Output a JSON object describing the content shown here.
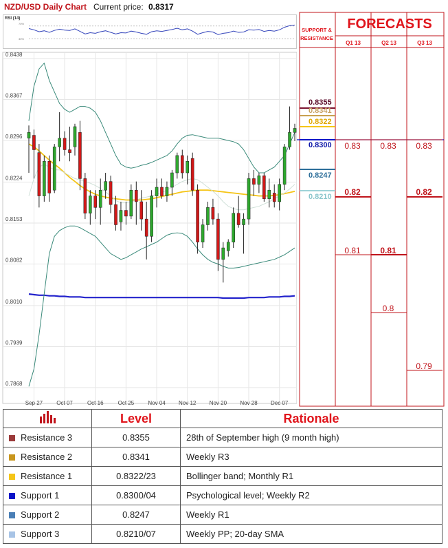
{
  "header": {
    "title": "NZD/USD Daily Chart",
    "price_label": "Current price:",
    "price_value": "0.8317"
  },
  "rsi": {
    "label": "RSI (14)",
    "level_labels": [
      "70%",
      "30%"
    ]
  },
  "forecast_header": {
    "title": "FORECASTS",
    "sr_title_line1": "SUPPORT &",
    "sr_title_line2": "RESISTANCE",
    "quarters": [
      "Q1 13",
      "Q2 13",
      "Q3 13"
    ]
  },
  "levels": [
    {
      "name": "Resistance 3",
      "value": "0.8355",
      "level_label": "0.8355",
      "color": "#7b1230",
      "swatch": "#9b3a3a",
      "rationale": "28th of September high (9 month high)"
    },
    {
      "name": "Resistance 2",
      "value": "0.8341",
      "level_label": "0.8341",
      "color": "#c8a050",
      "swatch": "#c8961e",
      "rationale": "Weekly R3"
    },
    {
      "name": "Resistance 1",
      "value": "0.8322/23",
      "level_label": "0.8322",
      "color": "#f5c518",
      "swatch": "#f5c518",
      "rationale": "Bollinger band; Monthly R1"
    },
    {
      "name": "Support 1",
      "value": "0.8300/04",
      "level_label": "0.8300",
      "color": "#0a14c8",
      "swatch": "#0a14c8",
      "rationale": "Psychological level; Weekly R2"
    },
    {
      "name": "Support 2",
      "value": "0.8247",
      "level_label": "0.8247",
      "color": "#2e6f9a",
      "swatch": "#4a7fb6",
      "rationale": "Weekly R1"
    },
    {
      "name": "Support 3",
      "value": "0.8210/07",
      "level_label": "0.8210",
      "color": "#9ed3d8",
      "swatch": "#a8c4e6",
      "rationale": "Weekly PP; 20-day SMA"
    }
  ],
  "table": {
    "header_level": "Level",
    "header_rationale": "Rationale"
  },
  "forecasts": {
    "columns": [
      {
        "quarter": "Q1 13",
        "values": [
          0.83,
          0.82,
          0.81
        ],
        "labels": [
          "0.83",
          "0.82",
          "0.81"
        ],
        "bold_index": 1
      },
      {
        "quarter": "Q2 13",
        "values": [
          0.83,
          0.81,
          0.8
        ],
        "labels": [
          "0.83",
          "0.81",
          "0.8"
        ],
        "bold_index": 1
      },
      {
        "quarter": "Q3 13",
        "values": [
          0.83,
          0.82,
          0.79
        ],
        "labels": [
          "0.83",
          "0.82",
          "0.79"
        ],
        "bold_index": 1
      }
    ]
  },
  "chart_data": {
    "type": "candlestick",
    "title": "NZD/USD Daily Chart",
    "y_ticks": [
      "0.8438",
      "0.8367",
      "0.8296",
      "0.8224",
      "0.8153",
      "0.8082",
      "0.8010",
      "0.7939",
      "0.7868"
    ],
    "ylim": [
      0.7868,
      0.8438
    ],
    "x_ticks": [
      "Sep 27",
      "Oct 07",
      "Oct 16",
      "Oct 25",
      "Nov 04",
      "Nov 12",
      "Nov 20",
      "Nov 28",
      "Dec 07"
    ],
    "grid": true,
    "candles": [
      {
        "o": 0.83,
        "h": 0.8322,
        "l": 0.824,
        "c": 0.831
      },
      {
        "o": 0.8305,
        "h": 0.8315,
        "l": 0.823,
        "c": 0.828
      },
      {
        "o": 0.8275,
        "h": 0.829,
        "l": 0.818,
        "c": 0.82
      },
      {
        "o": 0.82,
        "h": 0.827,
        "l": 0.819,
        "c": 0.826
      },
      {
        "o": 0.826,
        "h": 0.827,
        "l": 0.819,
        "c": 0.8205
      },
      {
        "o": 0.821,
        "h": 0.829,
        "l": 0.8205,
        "c": 0.8285
      },
      {
        "o": 0.8285,
        "h": 0.8345,
        "l": 0.826,
        "c": 0.83
      },
      {
        "o": 0.83,
        "h": 0.8312,
        "l": 0.827,
        "c": 0.828
      },
      {
        "o": 0.828,
        "h": 0.832,
        "l": 0.826,
        "c": 0.8275
      },
      {
        "o": 0.8285,
        "h": 0.8325,
        "l": 0.827,
        "c": 0.832
      },
      {
        "o": 0.831,
        "h": 0.833,
        "l": 0.821,
        "c": 0.823
      },
      {
        "o": 0.823,
        "h": 0.824,
        "l": 0.816,
        "c": 0.817
      },
      {
        "o": 0.817,
        "h": 0.821,
        "l": 0.815,
        "c": 0.82
      },
      {
        "o": 0.82,
        "h": 0.821,
        "l": 0.816,
        "c": 0.818
      },
      {
        "o": 0.818,
        "h": 0.823,
        "l": 0.815,
        "c": 0.821
      },
      {
        "o": 0.821,
        "h": 0.824,
        "l": 0.8195,
        "c": 0.8225
      },
      {
        "o": 0.8225,
        "h": 0.8235,
        "l": 0.817,
        "c": 0.8185
      },
      {
        "o": 0.8185,
        "h": 0.82,
        "l": 0.814,
        "c": 0.815
      },
      {
        "o": 0.8155,
        "h": 0.819,
        "l": 0.814,
        "c": 0.8175
      },
      {
        "o": 0.8175,
        "h": 0.819,
        "l": 0.815,
        "c": 0.8165
      },
      {
        "o": 0.8165,
        "h": 0.822,
        "l": 0.816,
        "c": 0.821
      },
      {
        "o": 0.821,
        "h": 0.8225,
        "l": 0.815,
        "c": 0.819
      },
      {
        "o": 0.819,
        "h": 0.821,
        "l": 0.814,
        "c": 0.816
      },
      {
        "o": 0.816,
        "h": 0.819,
        "l": 0.809,
        "c": 0.813
      },
      {
        "o": 0.813,
        "h": 0.821,
        "l": 0.812,
        "c": 0.82
      },
      {
        "o": 0.82,
        "h": 0.823,
        "l": 0.818,
        "c": 0.8215
      },
      {
        "o": 0.8215,
        "h": 0.823,
        "l": 0.8195,
        "c": 0.82
      },
      {
        "o": 0.82,
        "h": 0.8225,
        "l": 0.819,
        "c": 0.8215
      },
      {
        "o": 0.8215,
        "h": 0.8245,
        "l": 0.82,
        "c": 0.824
      },
      {
        "o": 0.824,
        "h": 0.8275,
        "l": 0.823,
        "c": 0.827
      },
      {
        "o": 0.827,
        "h": 0.828,
        "l": 0.823,
        "c": 0.824
      },
      {
        "o": 0.824,
        "h": 0.827,
        "l": 0.822,
        "c": 0.826
      },
      {
        "o": 0.8265,
        "h": 0.8275,
        "l": 0.82,
        "c": 0.821
      },
      {
        "o": 0.821,
        "h": 0.822,
        "l": 0.81,
        "c": 0.812
      },
      {
        "o": 0.812,
        "h": 0.816,
        "l": 0.811,
        "c": 0.815
      },
      {
        "o": 0.815,
        "h": 0.819,
        "l": 0.814,
        "c": 0.818
      },
      {
        "o": 0.818,
        "h": 0.8195,
        "l": 0.815,
        "c": 0.816
      },
      {
        "o": 0.816,
        "h": 0.817,
        "l": 0.807,
        "c": 0.809
      },
      {
        "o": 0.809,
        "h": 0.812,
        "l": 0.805,
        "c": 0.811
      },
      {
        "o": 0.8105,
        "h": 0.8125,
        "l": 0.8095,
        "c": 0.812
      },
      {
        "o": 0.812,
        "h": 0.818,
        "l": 0.811,
        "c": 0.817
      },
      {
        "o": 0.817,
        "h": 0.82,
        "l": 0.8145,
        "c": 0.815
      },
      {
        "o": 0.815,
        "h": 0.817,
        "l": 0.81,
        "c": 0.816
      },
      {
        "o": 0.816,
        "h": 0.824,
        "l": 0.815,
        "c": 0.823
      },
      {
        "o": 0.823,
        "h": 0.8245,
        "l": 0.82,
        "c": 0.822
      },
      {
        "o": 0.822,
        "h": 0.824,
        "l": 0.8205,
        "c": 0.8235
      },
      {
        "o": 0.8235,
        "h": 0.824,
        "l": 0.819,
        "c": 0.8195
      },
      {
        "o": 0.8195,
        "h": 0.823,
        "l": 0.818,
        "c": 0.821
      },
      {
        "o": 0.8205,
        "h": 0.822,
        "l": 0.818,
        "c": 0.819
      },
      {
        "o": 0.819,
        "h": 0.823,
        "l": 0.8175,
        "c": 0.822
      },
      {
        "o": 0.822,
        "h": 0.829,
        "l": 0.821,
        "c": 0.8285
      },
      {
        "o": 0.8285,
        "h": 0.8355,
        "l": 0.828,
        "c": 0.831
      },
      {
        "o": 0.831,
        "h": 0.8325,
        "l": 0.8295,
        "c": 0.8317
      }
    ],
    "series": [
      {
        "values": [
          0.829,
          0.8285,
          0.8278,
          0.827,
          0.8262,
          0.8255,
          0.8248,
          0.824,
          0.8232,
          0.8225,
          0.8218,
          0.8212,
          0.8207,
          0.8203,
          0.82,
          0.8198,
          0.8196,
          0.8195,
          0.8194,
          0.8193,
          0.8193,
          0.8193,
          0.8193,
          0.8194,
          0.8195,
          0.8197,
          0.8199,
          0.8201,
          0.8203,
          0.8205,
          0.8207,
          0.8208,
          0.8209,
          0.821,
          0.821,
          0.821,
          0.8209,
          0.8208,
          0.8207,
          0.8206,
          0.8205,
          0.8204,
          0.8203,
          0.8202,
          0.8201,
          0.82,
          0.82,
          0.82,
          0.8201,
          0.8202,
          0.8204,
          0.8206,
          0.8208
        ],
        "color": "#f5c518"
      },
      {
        "values": [
          0.803,
          0.8029,
          0.8028,
          0.8028,
          0.8027,
          0.8027,
          0.8026,
          0.8026,
          0.8025,
          0.8025,
          0.8025,
          0.8024,
          0.8024,
          0.8024,
          0.8024,
          0.8024,
          0.8024,
          0.8024,
          0.8024,
          0.8024,
          0.8024,
          0.8024,
          0.8024,
          0.8024,
          0.8024,
          0.8024,
          0.8024,
          0.8024,
          0.8024,
          0.8024,
          0.8024,
          0.8024,
          0.8024,
          0.8024,
          0.8024,
          0.8024,
          0.8024,
          0.8024,
          0.8023,
          0.8023,
          0.8023,
          0.8023,
          0.8023,
          0.8024,
          0.8024,
          0.8024,
          0.8024,
          0.8025,
          0.8025,
          0.8025,
          0.8026,
          0.8026,
          0.8027
        ],
        "color": "#2222cc"
      },
      {
        "values": [
          0.833,
          0.839,
          0.842,
          0.843,
          0.84,
          0.838,
          0.836,
          0.835,
          0.8345,
          0.835,
          0.8355,
          0.8355,
          0.8352,
          0.8345,
          0.833,
          0.831,
          0.829,
          0.827,
          0.8255,
          0.825,
          0.8248,
          0.825,
          0.8253,
          0.8255,
          0.8258,
          0.8262,
          0.8266,
          0.827,
          0.8278,
          0.829,
          0.83,
          0.8305,
          0.8306,
          0.8304,
          0.8302,
          0.83,
          0.83,
          0.83,
          0.8298,
          0.8296,
          0.8294,
          0.829,
          0.828,
          0.8265,
          0.825,
          0.824,
          0.824,
          0.8245,
          0.825,
          0.826,
          0.827,
          0.829,
          0.831
        ],
        "color": "#3a8a7a"
      },
      {
        "values": [
          0.787,
          0.79,
          0.796,
          0.803,
          0.81,
          0.813,
          0.814,
          0.8145,
          0.8148,
          0.8148,
          0.8145,
          0.814,
          0.8135,
          0.813,
          0.812,
          0.811,
          0.81,
          0.8095,
          0.809,
          0.8093,
          0.8098,
          0.8103,
          0.8108,
          0.8112,
          0.8116,
          0.812,
          0.8126,
          0.8132,
          0.8135,
          0.8136,
          0.8135,
          0.813,
          0.812,
          0.8108,
          0.8098,
          0.809,
          0.8085,
          0.8082,
          0.8078,
          0.8075,
          0.8075,
          0.8076,
          0.8078,
          0.808,
          0.8082,
          0.8084,
          0.8086,
          0.8088,
          0.809,
          0.8094,
          0.8098,
          0.8104,
          0.811
        ],
        "color": "#3a8a7a"
      },
      {
        "values": [
          0.82,
          0.823,
          0.825,
          0.8255,
          0.825,
          0.8245,
          0.8245,
          0.824,
          0.8235,
          0.823,
          0.8228,
          0.8225,
          0.8222,
          0.8218,
          0.8213,
          0.8207,
          0.82,
          0.8192,
          0.8188,
          0.8188,
          0.819,
          0.8193,
          0.8196,
          0.8198,
          0.82,
          0.8203,
          0.8206,
          0.821,
          0.8215,
          0.822,
          0.8225,
          0.8228,
          0.823,
          0.8228,
          0.8222,
          0.8215,
          0.8208,
          0.82,
          0.819,
          0.8182,
          0.8178,
          0.8176,
          0.8176,
          0.8178,
          0.818,
          0.8182,
          0.8186,
          0.819,
          0.8195,
          0.82,
          0.8205,
          0.8212,
          0.822
        ],
        "color": "#cfe0d8"
      }
    ],
    "rsi_values": [
      62,
      58,
      52,
      55,
      50,
      56,
      60,
      57,
      56,
      61,
      53,
      45,
      49,
      47,
      52,
      55,
      50,
      45,
      49,
      48,
      54,
      51,
      47,
      44,
      52,
      55,
      53,
      56,
      59,
      63,
      58,
      61,
      54,
      44,
      49,
      53,
      51,
      43,
      47,
      49,
      54,
      50,
      51,
      58,
      57,
      59,
      53,
      56,
      54,
      58,
      66,
      71,
      73
    ]
  }
}
